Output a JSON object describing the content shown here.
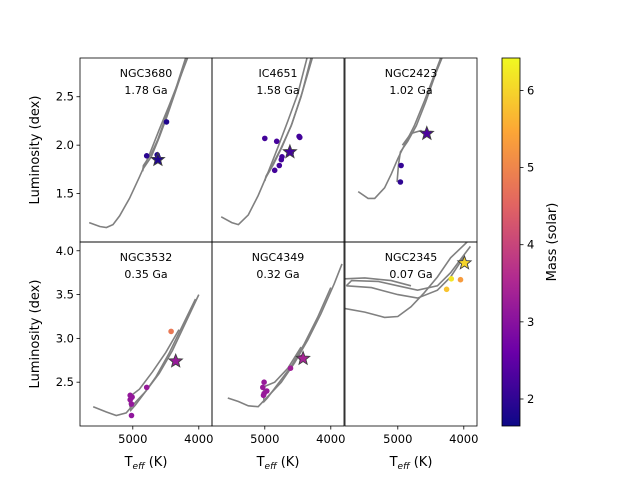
{
  "chart_data": [
    {
      "type": "scatter",
      "title": "NGC3680",
      "age": "1.78 Ga",
      "xlabel": "",
      "ylabel": "Luminosity (dex)",
      "xlim": [
        5800,
        3800
      ],
      "ylim": [
        1.0,
        2.9
      ],
      "yticks": [
        "1.5",
        "2.0",
        "2.5"
      ],
      "xticks": [],
      "isochrone": [
        [
          [
            5660,
            1.2
          ],
          [
            5500,
            1.16
          ],
          [
            5400,
            1.15
          ],
          [
            5300,
            1.18
          ],
          [
            5200,
            1.27
          ],
          [
            5050,
            1.45
          ],
          [
            4900,
            1.67
          ],
          [
            4750,
            1.9
          ],
          [
            4600,
            2.16
          ],
          [
            4450,
            2.41
          ],
          [
            4300,
            2.67
          ],
          [
            4170,
            2.9
          ]
        ],
        [
          [
            4850,
            1.73
          ],
          [
            4840,
            1.79
          ],
          [
            4720,
            1.91
          ],
          [
            4620,
            2.06
          ],
          [
            4500,
            2.29
          ],
          [
            4350,
            2.58
          ],
          [
            4200,
            2.9
          ]
        ],
        [
          [
            4850,
            1.75
          ],
          [
            4720,
            1.88
          ],
          [
            4600,
            2.08
          ],
          [
            4480,
            2.3
          ],
          [
            4330,
            2.6
          ],
          [
            4180,
            2.9
          ]
        ]
      ],
      "stars": [
        {
          "teff": 4790,
          "lum": 1.89,
          "mass": 1.95
        },
        {
          "teff": 4620,
          "lum": 1.88,
          "mass": 1.85
        },
        {
          "teff": 4610,
          "lum": 1.86,
          "mass": 1.85
        },
        {
          "teff": 4630,
          "lum": 1.9,
          "mass": 1.85
        },
        {
          "teff": 4490,
          "lum": 2.24,
          "mass": 1.85
        }
      ],
      "mean_star": {
        "teff": 4620,
        "lum": 1.85,
        "mass": 1.85
      }
    },
    {
      "type": "scatter",
      "title": "IC4651",
      "age": "1.58 Ga",
      "xlabel": "",
      "ylabel": "",
      "xlim": [
        5800,
        3800
      ],
      "ylim": [
        1.0,
        2.9
      ],
      "yticks": [],
      "xticks": [],
      "isochrone": [
        [
          [
            5660,
            1.26
          ],
          [
            5500,
            1.2
          ],
          [
            5400,
            1.18
          ],
          [
            5250,
            1.28
          ],
          [
            5100,
            1.48
          ],
          [
            4950,
            1.72
          ],
          [
            4800,
            1.98
          ],
          [
            4650,
            2.25
          ],
          [
            4500,
            2.53
          ],
          [
            4360,
            2.9
          ]
        ],
        [
          [
            5000,
            1.63
          ],
          [
            4980,
            1.68
          ],
          [
            4880,
            1.8
          ],
          [
            4760,
            1.96
          ],
          [
            4600,
            2.2
          ],
          [
            4450,
            2.5
          ],
          [
            4300,
            2.9
          ]
        ],
        [
          [
            4990,
            1.66
          ],
          [
            4870,
            1.8
          ],
          [
            4740,
            1.98
          ],
          [
            4590,
            2.22
          ],
          [
            4430,
            2.55
          ],
          [
            4280,
            2.9
          ]
        ]
      ],
      "stars": [
        {
          "teff": 5000,
          "lum": 2.07,
          "mass": 2.2
        },
        {
          "teff": 4820,
          "lum": 2.04,
          "mass": 2.25
        },
        {
          "teff": 4850,
          "lum": 1.74,
          "mass": 2.2
        },
        {
          "teff": 4780,
          "lum": 1.79,
          "mass": 2.2
        },
        {
          "teff": 4750,
          "lum": 1.85,
          "mass": 2.2
        },
        {
          "teff": 4740,
          "lum": 1.88,
          "mass": 2.2
        },
        {
          "teff": 4600,
          "lum": 1.92,
          "mass": 2.2
        },
        {
          "teff": 4480,
          "lum": 2.09,
          "mass": 2.2
        },
        {
          "teff": 4470,
          "lum": 2.08,
          "mass": 2.2
        }
      ],
      "mean_star": {
        "teff": 4620,
        "lum": 1.93,
        "mass": 2.2
      }
    },
    {
      "type": "scatter",
      "title": "NGC2423",
      "age": "1.02 Ga",
      "xlabel": "",
      "ylabel": "",
      "xlim": [
        5800,
        3800
      ],
      "ylim": [
        1.0,
        2.9
      ],
      "yticks": [],
      "xticks": [],
      "isochrone": [
        [
          [
            5600,
            1.52
          ],
          [
            5450,
            1.45
          ],
          [
            5350,
            1.45
          ],
          [
            5200,
            1.56
          ],
          [
            5100,
            1.7
          ],
          [
            5000,
            1.86
          ],
          [
            4900,
            2.0
          ],
          [
            4750,
            2.2
          ],
          [
            4600,
            2.45
          ],
          [
            4450,
            2.72
          ],
          [
            4350,
            2.9
          ]
        ],
        [
          [
            5010,
            1.62
          ],
          [
            4990,
            1.8
          ],
          [
            4960,
            1.93
          ],
          [
            4850,
            2.04
          ],
          [
            4720,
            2.2
          ],
          [
            4580,
            2.44
          ],
          [
            4420,
            2.75
          ],
          [
            4330,
            2.9
          ]
        ],
        [
          [
            4930,
            2.0
          ],
          [
            4800,
            2.12
          ],
          [
            4650,
            2.15
          ],
          [
            4550,
            2.1
          ]
        ]
      ],
      "stars": [
        {
          "teff": 4960,
          "lum": 1.62,
          "mass": 2.0
        },
        {
          "teff": 4950,
          "lum": 1.79,
          "mass": 2.05
        },
        {
          "teff": 4560,
          "lum": 2.13,
          "mass": 2.3
        }
      ],
      "mean_star": {
        "teff": 4560,
        "lum": 2.12,
        "mass": 2.3
      }
    },
    {
      "type": "scatter",
      "title": "NGC3532",
      "age": "0.35 Ga",
      "xlabel": "T_eff (K)",
      "ylabel": "Luminosity (dex)",
      "xlim": [
        5800,
        3800
      ],
      "ylim": [
        2.0,
        4.1
      ],
      "yticks": [
        "2.5",
        "3.0",
        "3.5",
        "4.0"
      ],
      "xticks": [
        "5000",
        "4000"
      ],
      "isochrone": [
        [
          [
            5600,
            2.22
          ],
          [
            5400,
            2.16
          ],
          [
            5250,
            2.12
          ],
          [
            5100,
            2.15
          ],
          [
            4950,
            2.28
          ],
          [
            4800,
            2.4
          ],
          [
            4600,
            2.6
          ],
          [
            4400,
            2.86
          ],
          [
            4200,
            3.18
          ],
          [
            4000,
            3.5
          ]
        ],
        [
          [
            5040,
            2.34
          ],
          [
            5050,
            2.26
          ],
          [
            5030,
            2.18
          ],
          [
            4960,
            2.24
          ],
          [
            4820,
            2.38
          ],
          [
            4650,
            2.56
          ],
          [
            4450,
            2.83
          ],
          [
            4250,
            3.14
          ],
          [
            4050,
            3.45
          ]
        ],
        [
          [
            5040,
            2.34
          ],
          [
            4900,
            2.42
          ],
          [
            4700,
            2.62
          ],
          [
            4500,
            2.84
          ],
          [
            4300,
            3.1
          ]
        ]
      ],
      "stars": [
        {
          "teff": 5020,
          "lum": 2.12,
          "mass": 3.1
        },
        {
          "teff": 5040,
          "lum": 2.3,
          "mass": 3.15
        },
        {
          "teff": 5010,
          "lum": 2.33,
          "mass": 3.15
        },
        {
          "teff": 5020,
          "lum": 2.25,
          "mass": 3.15
        },
        {
          "teff": 5040,
          "lum": 2.35,
          "mass": 3.15
        },
        {
          "teff": 4790,
          "lum": 2.44,
          "mass": 3.2
        },
        {
          "teff": 4420,
          "lum": 3.08,
          "mass": 4.8
        }
      ],
      "mean_star": {
        "teff": 4350,
        "lum": 2.74,
        "mass": 3.2
      }
    },
    {
      "type": "scatter",
      "title": "NGC4349",
      "age": "0.32 Ga",
      "xlabel": "T_eff (K)",
      "ylabel": "",
      "xlim": [
        5800,
        3800
      ],
      "ylim": [
        2.0,
        4.1
      ],
      "yticks": [],
      "xticks": [
        "5000",
        "4000"
      ],
      "isochrone": [
        [
          [
            5560,
            2.32
          ],
          [
            5400,
            2.28
          ],
          [
            5250,
            2.23
          ],
          [
            5100,
            2.22
          ],
          [
            4950,
            2.34
          ],
          [
            4750,
            2.5
          ],
          [
            4550,
            2.72
          ],
          [
            4350,
            2.98
          ],
          [
            4150,
            3.28
          ],
          [
            3950,
            3.62
          ],
          [
            3830,
            3.85
          ]
        ],
        [
          [
            5010,
            2.45
          ],
          [
            5020,
            2.36
          ],
          [
            5010,
            2.28
          ],
          [
            4960,
            2.32
          ],
          [
            4800,
            2.48
          ],
          [
            4600,
            2.68
          ],
          [
            4400,
            2.94
          ],
          [
            4200,
            3.24
          ],
          [
            4000,
            3.58
          ]
        ],
        [
          [
            5010,
            2.45
          ],
          [
            4850,
            2.5
          ],
          [
            4650,
            2.66
          ],
          [
            4450,
            2.9
          ]
        ]
      ],
      "stars": [
        {
          "teff": 5010,
          "lum": 2.37,
          "mass": 3.2
        },
        {
          "teff": 5020,
          "lum": 2.35,
          "mass": 3.2
        },
        {
          "teff": 5030,
          "lum": 2.44,
          "mass": 3.2
        },
        {
          "teff": 5010,
          "lum": 2.5,
          "mass": 3.2
        },
        {
          "teff": 4970,
          "lum": 2.4,
          "mass": 3.2
        },
        {
          "teff": 4610,
          "lum": 2.66,
          "mass": 3.3
        },
        {
          "teff": 4450,
          "lum": 2.78,
          "mass": 3.4
        }
      ],
      "mean_star": {
        "teff": 4420,
        "lum": 2.77,
        "mass": 3.4
      }
    },
    {
      "type": "scatter",
      "title": "NGC2345",
      "age": "0.07 Ga",
      "xlabel": "T_eff (K)",
      "ylabel": "",
      "xlim": [
        5800,
        3800
      ],
      "ylim": [
        2.0,
        4.1
      ],
      "yticks": [],
      "xticks": [
        "5000",
        "4000"
      ],
      "isochrone": [
        [
          [
            5800,
            3.34
          ],
          [
            5500,
            3.3
          ],
          [
            5200,
            3.24
          ],
          [
            5000,
            3.25
          ],
          [
            4800,
            3.36
          ],
          [
            4600,
            3.52
          ],
          [
            4400,
            3.7
          ],
          [
            4200,
            3.92
          ],
          [
            3950,
            4.1
          ]
        ],
        [
          [
            5780,
            3.6
          ],
          [
            5700,
            3.66
          ],
          [
            5300,
            3.65
          ],
          [
            5000,
            3.6
          ],
          [
            4700,
            3.55
          ],
          [
            4400,
            3.6
          ],
          [
            4200,
            3.75
          ],
          [
            4050,
            3.9
          ],
          [
            3900,
            4.05
          ]
        ],
        [
          [
            5780,
            3.6
          ],
          [
            5400,
            3.58
          ],
          [
            5000,
            3.5
          ],
          [
            4700,
            3.46
          ],
          [
            4400,
            3.55
          ],
          [
            4200,
            3.7
          ],
          [
            4000,
            3.93
          ]
        ],
        [
          [
            5800,
            3.68
          ],
          [
            5500,
            3.69
          ],
          [
            5100,
            3.66
          ],
          [
            4800,
            3.6
          ]
        ]
      ],
      "stars": [
        {
          "teff": 4260,
          "lum": 3.56,
          "mass": 5.8
        },
        {
          "teff": 4190,
          "lum": 3.68,
          "mass": 6.2
        },
        {
          "teff": 4050,
          "lum": 3.67,
          "mass": 5.3
        },
        {
          "teff": 3990,
          "lum": 3.86,
          "mass": 6.0
        }
      ],
      "mean_star": {
        "teff": 3990,
        "lum": 3.86,
        "mass": 6.0
      }
    }
  ],
  "colorbar": {
    "label": "Mass (solar)",
    "range": [
      1.65,
      6.42
    ],
    "ticks": [
      "2",
      "3",
      "4",
      "5",
      "6"
    ]
  },
  "colors": {
    "isochrone": "#808080",
    "colormap": [
      "#0d0887",
      "#6a00a8",
      "#b12a90",
      "#e16462",
      "#fca636",
      "#f0f921"
    ]
  }
}
